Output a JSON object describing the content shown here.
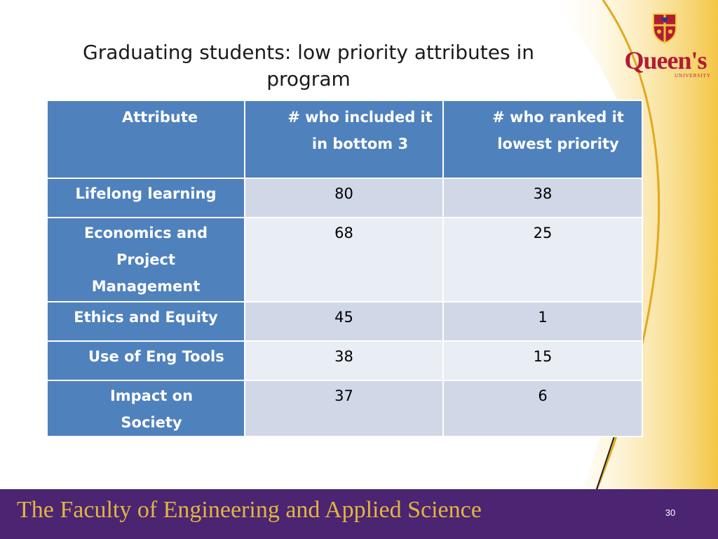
{
  "title": "Graduating students: low priority attributes in program",
  "logo": {
    "text": "Queen's",
    "subtext": "UNIVERSITY"
  },
  "table": {
    "headers": [
      "Attribute",
      "# who included it in bottom 3",
      "# who ranked it lowest priority"
    ],
    "rows": [
      {
        "attribute": "Lifelong learning",
        "bottom3": "80",
        "lowest": "38"
      },
      {
        "attribute": "Economics and Project Management",
        "bottom3": "68",
        "lowest": "25"
      },
      {
        "attribute": "Ethics and Equity",
        "bottom3": "45",
        "lowest": "1"
      },
      {
        "attribute": "Use of Eng Tools",
        "bottom3": "38",
        "lowest": "15"
      },
      {
        "attribute": "Impact on Society",
        "bottom3": "37",
        "lowest": "6"
      }
    ]
  },
  "footer": {
    "text": "The Faculty of Engineering and Applied Science",
    "page_number": "30"
  },
  "colors": {
    "header_blue": "#4f81bd",
    "footer_purple": "#4b2472",
    "footer_gold": "#e0b640",
    "accent_gold": "#f3c33a",
    "brand_red": "#b31b34"
  }
}
